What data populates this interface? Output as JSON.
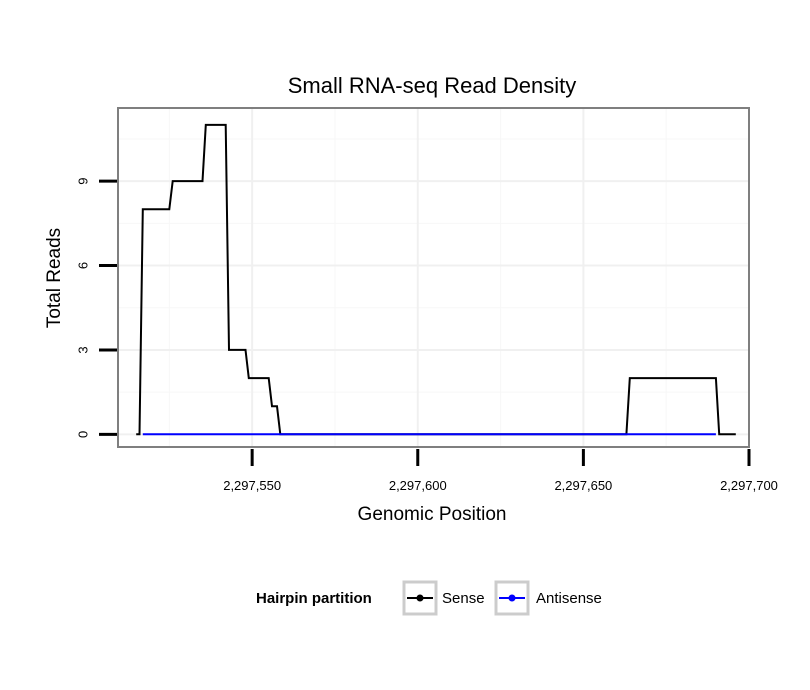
{
  "chart_data": {
    "type": "line",
    "title": "Small RNA-seq Read Density",
    "xlabel": "Genomic Position",
    "ylabel": "Total Reads",
    "xlim": [
      2297509.5,
      2297700
    ],
    "ylim": [
      -0.45,
      11.6
    ],
    "x_ticks": [
      2297550,
      2297600,
      2297650,
      2297700
    ],
    "x_tick_labels": [
      "2,297,550",
      "2,297,600",
      "2,297,650",
      "2,297,700"
    ],
    "y_ticks": [
      0,
      3,
      6,
      9
    ],
    "y_tick_labels": [
      "0",
      "3",
      "6",
      "9"
    ],
    "grid": true,
    "legend": {
      "title": "Hairpin partition",
      "position": "bottom",
      "entries": [
        "Sense",
        "Antisense"
      ]
    },
    "series": [
      {
        "name": "Sense",
        "color": "#000000",
        "x": [
          2297515,
          2297516,
          2297517,
          2297525,
          2297526,
          2297535,
          2297536,
          2297542,
          2297543,
          2297548,
          2297549,
          2297555,
          2297556,
          2297557.5,
          2297558.5,
          2297663,
          2297664,
          2297690,
          2297691,
          2297696
        ],
        "y": [
          0,
          0,
          8,
          8,
          9,
          9,
          11,
          11,
          3,
          3,
          2,
          2,
          1,
          1,
          0,
          0,
          2,
          2,
          0,
          0
        ]
      },
      {
        "name": "Antisense",
        "color": "#0000ff",
        "x": [
          2297517,
          2297558.5,
          2297663,
          2297690
        ],
        "y": [
          0,
          0,
          0,
          0
        ]
      }
    ]
  }
}
